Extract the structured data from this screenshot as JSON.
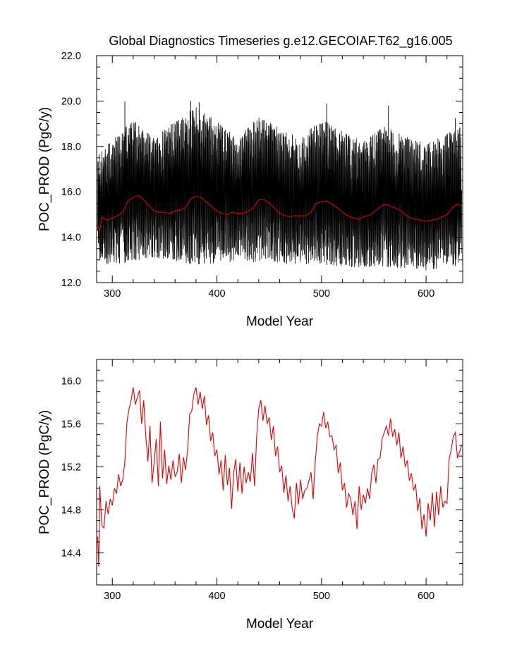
{
  "title": "Global Diagnostics Timeseries g.e12.GECOIAF.T62_g16.005",
  "colors": {
    "raw": "#000000",
    "smooth": "#e00000",
    "frame": "#000000"
  },
  "chart_data": [
    {
      "type": "line",
      "xlabel": "Model Year",
      "ylabel": "POC_PROD (PgC/y)",
      "xlim": [
        285,
        635
      ],
      "ylim": [
        12.0,
        22.0
      ],
      "xticks": [
        300,
        400,
        500,
        600
      ],
      "xtick_labels": [
        "300",
        "400",
        "500",
        "600"
      ],
      "yticks": [
        12.0,
        14.0,
        16.0,
        18.0,
        20.0,
        22.0
      ],
      "ytick_labels": [
        "12.0",
        "14.0",
        "16.0",
        "18.0",
        "20.0",
        "22.0"
      ],
      "grid": false,
      "series": [
        {
          "style": "monthly-raw",
          "color": "#000000",
          "x_range": [
            286,
            634
          ],
          "band_low": [
            [
              286,
              12.8
            ],
            [
              320,
              12.9
            ],
            [
              340,
              13.1
            ],
            [
              380,
              12.8
            ],
            [
              420,
              12.9
            ],
            [
              440,
              12.9
            ],
            [
              480,
              12.8
            ],
            [
              500,
              12.8
            ],
            [
              540,
              12.6
            ],
            [
              560,
              12.7
            ],
            [
              600,
              12.5
            ],
            [
              634,
              12.8
            ]
          ],
          "band_high": [
            [
              286,
              17.7
            ],
            [
              320,
              19.2
            ],
            [
              340,
              18.4
            ],
            [
              380,
              19.8
            ],
            [
              420,
              18.4
            ],
            [
              440,
              19.3
            ],
            [
              480,
              18.4
            ],
            [
              500,
              19.2
            ],
            [
              540,
              18.2
            ],
            [
              560,
              18.9
            ],
            [
              600,
              18.1
            ],
            [
              634,
              18.9
            ]
          ],
          "peaks": [
            [
              312,
              19.98
            ],
            [
              375,
              20.0
            ],
            [
              383,
              19.95
            ],
            [
              505,
              19.9
            ],
            [
              564,
              19.8
            ],
            [
              628,
              19.25
            ]
          ]
        },
        {
          "style": "annual-mean",
          "color": "#e00000",
          "x": [
            286,
            288,
            290,
            295,
            300,
            305,
            310,
            315,
            320,
            325,
            330,
            335,
            340,
            345,
            350,
            355,
            360,
            365,
            370,
            375,
            380,
            385,
            390,
            395,
            400,
            405,
            410,
            415,
            420,
            425,
            430,
            435,
            440,
            445,
            450,
            455,
            460,
            465,
            470,
            475,
            480,
            485,
            490,
            495,
            500,
            505,
            510,
            515,
            520,
            525,
            530,
            535,
            540,
            545,
            550,
            555,
            560,
            565,
            570,
            575,
            580,
            585,
            590,
            595,
            600,
            605,
            610,
            615,
            620,
            625,
            630,
            634
          ],
          "values": [
            14.55,
            14.3,
            14.9,
            14.75,
            14.85,
            14.95,
            15.1,
            15.6,
            15.75,
            15.85,
            15.65,
            15.4,
            15.15,
            15.1,
            15.1,
            15.05,
            15.15,
            15.2,
            15.3,
            15.7,
            15.8,
            15.75,
            15.55,
            15.35,
            15.15,
            15.05,
            15.0,
            15.1,
            15.05,
            15.05,
            15.15,
            15.3,
            15.65,
            15.65,
            15.5,
            15.3,
            15.05,
            14.95,
            14.9,
            14.95,
            14.95,
            14.95,
            15.1,
            15.5,
            15.55,
            15.6,
            15.45,
            15.3,
            15.1,
            14.95,
            14.85,
            14.8,
            14.9,
            14.95,
            15.1,
            15.3,
            15.45,
            15.4,
            15.3,
            15.2,
            15.0,
            14.85,
            14.8,
            14.75,
            14.7,
            14.75,
            14.8,
            14.9,
            15.0,
            15.3,
            15.45,
            15.4
          ]
        }
      ]
    },
    {
      "type": "line",
      "xlabel": "Model Year",
      "ylabel": "POC_PROD (PgC/y)",
      "xlim": [
        285,
        635
      ],
      "ylim": [
        14.1,
        16.2
      ],
      "xticks": [
        300,
        400,
        500,
        600
      ],
      "xtick_labels": [
        "300",
        "400",
        "500",
        "600"
      ],
      "yticks": [
        14.4,
        14.8,
        15.2,
        15.6,
        16.0
      ],
      "ytick_labels": [
        "14.4",
        "14.8",
        "15.2",
        "15.6",
        "16.0"
      ],
      "grid": false,
      "series": [
        {
          "color": "#e00000",
          "x": [
            286,
            287,
            288,
            290,
            292,
            294,
            296,
            298,
            300,
            302,
            304,
            306,
            308,
            310,
            312,
            314,
            316,
            318,
            320,
            322,
            324,
            326,
            328,
            330,
            332,
            334,
            336,
            338,
            340,
            342,
            344,
            346,
            348,
            350,
            352,
            354,
            356,
            358,
            360,
            362,
            364,
            366,
            368,
            370,
            372,
            374,
            376,
            378,
            380,
            382,
            384,
            386,
            388,
            390,
            392,
            394,
            396,
            398,
            400,
            402,
            404,
            406,
            408,
            410,
            412,
            414,
            416,
            418,
            420,
            422,
            424,
            426,
            428,
            430,
            432,
            434,
            436,
            438,
            440,
            442,
            444,
            446,
            448,
            450,
            452,
            454,
            456,
            458,
            460,
            462,
            464,
            466,
            468,
            470,
            472,
            474,
            476,
            478,
            480,
            482,
            484,
            486,
            488,
            490,
            492,
            494,
            496,
            498,
            500,
            502,
            504,
            506,
            508,
            510,
            512,
            514,
            516,
            518,
            520,
            522,
            524,
            526,
            528,
            530,
            532,
            534,
            536,
            538,
            540,
            542,
            544,
            546,
            548,
            550,
            552,
            554,
            556,
            558,
            560,
            562,
            564,
            566,
            568,
            570,
            572,
            574,
            576,
            578,
            580,
            582,
            584,
            586,
            588,
            590,
            592,
            594,
            596,
            598,
            600,
            602,
            604,
            606,
            608,
            610,
            612,
            614,
            616,
            618,
            620,
            622,
            624,
            626,
            628,
            630,
            632,
            634
          ],
          "values": [
            14.55,
            14.27,
            15.02,
            14.65,
            14.63,
            14.88,
            14.76,
            14.9,
            14.84,
            15.0,
            14.95,
            15.13,
            15.02,
            15.08,
            15.25,
            15.62,
            15.74,
            15.82,
            15.94,
            15.78,
            15.85,
            15.91,
            15.6,
            15.82,
            15.49,
            15.25,
            15.58,
            15.05,
            15.24,
            15.46,
            15.02,
            15.62,
            15.09,
            15.36,
            15.04,
            15.21,
            15.08,
            15.26,
            15.11,
            15.15,
            15.32,
            15.05,
            15.29,
            15.17,
            15.36,
            15.69,
            15.72,
            15.88,
            15.94,
            15.78,
            15.9,
            15.74,
            15.86,
            15.59,
            15.68,
            15.44,
            15.52,
            15.3,
            15.36,
            15.13,
            15.26,
            14.98,
            15.31,
            15.03,
            15.19,
            14.81,
            15.14,
            15.27,
            14.97,
            15.24,
            14.95,
            15.2,
            15.05,
            15.15,
            15.06,
            15.33,
            15.02,
            15.48,
            15.74,
            15.82,
            15.63,
            15.77,
            15.6,
            15.66,
            15.45,
            15.58,
            15.3,
            15.39,
            15.15,
            15.21,
            14.96,
            15.12,
            14.88,
            15.02,
            14.81,
            14.72,
            15.05,
            14.85,
            15.08,
            14.9,
            14.98,
            15.0,
            15.07,
            15.15,
            14.9,
            15.24,
            15.48,
            15.6,
            15.58,
            15.71,
            15.56,
            15.62,
            15.48,
            15.49,
            15.36,
            15.4,
            15.14,
            15.24,
            14.98,
            15.05,
            14.82,
            14.95,
            14.9,
            14.75,
            14.88,
            14.62,
            15.02,
            14.8,
            14.94,
            14.86,
            15.0,
            14.9,
            15.14,
            15.22,
            15.05,
            15.27,
            15.28,
            15.46,
            15.52,
            15.58,
            15.49,
            15.65,
            15.48,
            15.55,
            15.4,
            15.52,
            15.28,
            15.39,
            15.2,
            15.26,
            15.07,
            15.14,
            14.98,
            15.04,
            14.79,
            14.91,
            14.62,
            14.76,
            14.55,
            14.86,
            14.7,
            14.96,
            14.64,
            14.97,
            14.75,
            15.02,
            14.82,
            14.88,
            14.86,
            15.27,
            15.36,
            15.48,
            15.52,
            15.28,
            15.34,
            15.4
          ]
        }
      ]
    }
  ]
}
